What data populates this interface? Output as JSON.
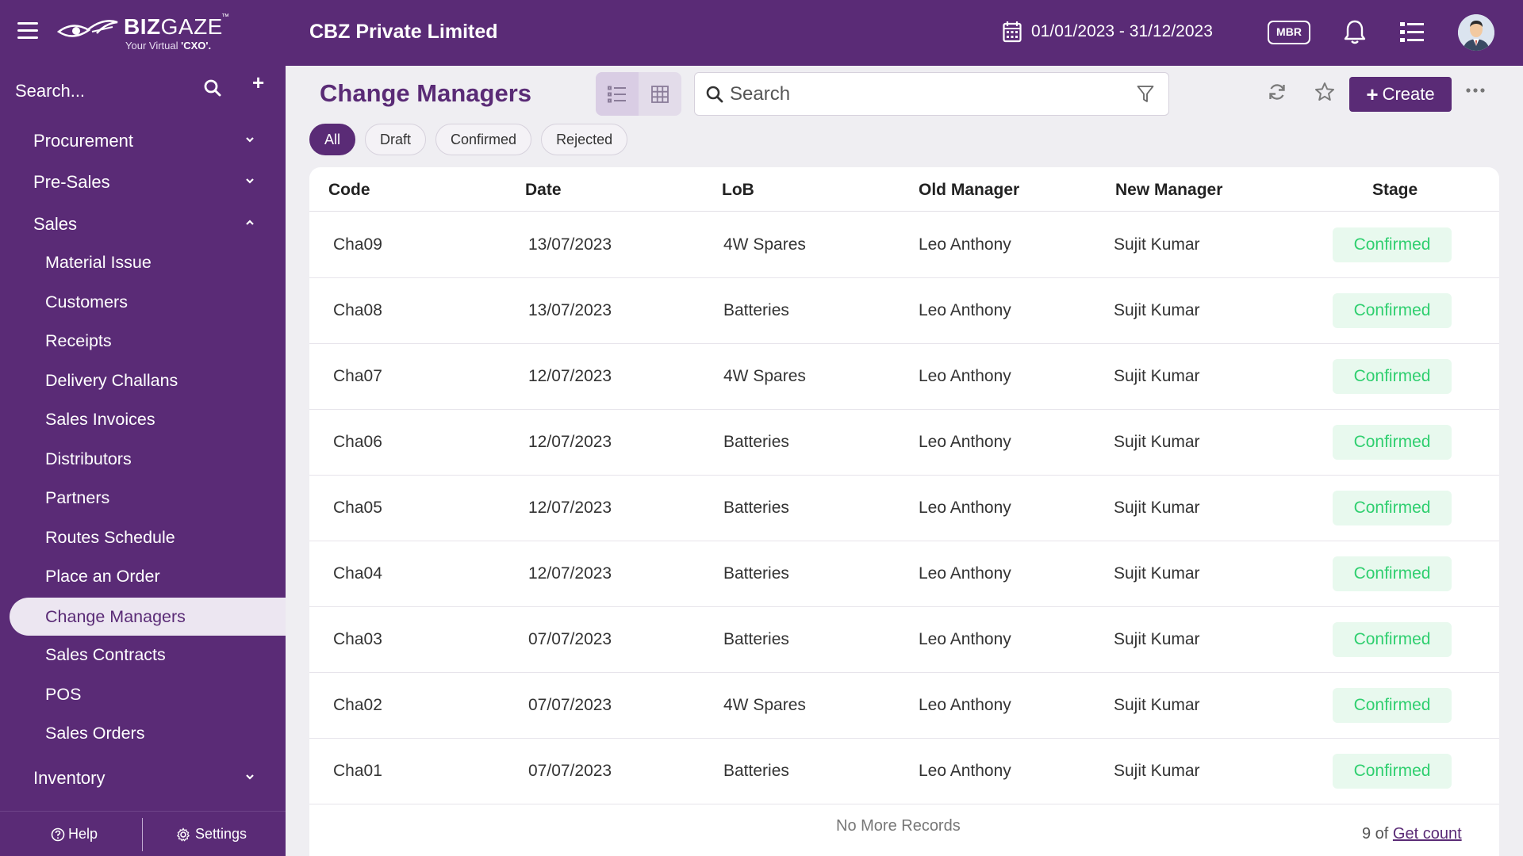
{
  "app": {
    "logo_main": "BIZ",
    "logo_light": "GAZE",
    "logo_tm": "™",
    "logo_tagline_prefix": "Your Virtual ",
    "logo_tagline_bold": "'CXO'.",
    "company": "CBZ Private Limited",
    "date_range": "01/01/2023 - 31/12/2023",
    "mbr_label": "MBR",
    "brand_color": "#5a2b76"
  },
  "sidebar": {
    "search_placeholder": "Search...",
    "add_label": "+",
    "groups": [
      {
        "label": "Procurement",
        "expanded": false
      },
      {
        "label": "Pre-Sales",
        "expanded": false
      },
      {
        "label": "Sales",
        "expanded": true
      },
      {
        "label": "Inventory",
        "expanded": false
      }
    ],
    "sales_items": [
      "Material Issue",
      "Customers",
      "Receipts",
      "Delivery Challans",
      "Sales Invoices",
      "Distributors",
      "Partners",
      "Routes Schedule",
      "Place an Order",
      "Change Managers",
      "Sales Contracts",
      "POS",
      "Sales Orders"
    ],
    "active_item": "Change Managers",
    "footer": {
      "help": "Help",
      "settings": "Settings"
    }
  },
  "main": {
    "title": "Change Managers",
    "search_placeholder": "Search",
    "create_label": "Create",
    "filters": [
      {
        "label": "All",
        "active": true
      },
      {
        "label": "Draft",
        "active": false
      },
      {
        "label": "Confirmed",
        "active": false
      },
      {
        "label": "Rejected",
        "active": false
      }
    ],
    "table": {
      "columns": [
        "Code",
        "Date",
        "LoB",
        "Old Manager",
        "New Manager",
        "Stage"
      ],
      "rows": [
        {
          "code": "Cha09",
          "date": "13/07/2023",
          "lob": "4W Spares",
          "old_manager": "Leo Anthony",
          "new_manager": "Sujit Kumar",
          "stage": "Confirmed"
        },
        {
          "code": "Cha08",
          "date": "13/07/2023",
          "lob": "Batteries",
          "old_manager": "Leo Anthony",
          "new_manager": "Sujit Kumar",
          "stage": "Confirmed"
        },
        {
          "code": "Cha07",
          "date": "12/07/2023",
          "lob": "4W Spares",
          "old_manager": "Leo Anthony",
          "new_manager": "Sujit Kumar",
          "stage": "Confirmed"
        },
        {
          "code": "Cha06",
          "date": "12/07/2023",
          "lob": "Batteries",
          "old_manager": "Leo Anthony",
          "new_manager": "Sujit Kumar",
          "stage": "Confirmed"
        },
        {
          "code": "Cha05",
          "date": "12/07/2023",
          "lob": "Batteries",
          "old_manager": "Leo Anthony",
          "new_manager": "Sujit Kumar",
          "stage": "Confirmed"
        },
        {
          "code": "Cha04",
          "date": "12/07/2023",
          "lob": "Batteries",
          "old_manager": "Leo Anthony",
          "new_manager": "Sujit Kumar",
          "stage": "Confirmed"
        },
        {
          "code": "Cha03",
          "date": "07/07/2023",
          "lob": "Batteries",
          "old_manager": "Leo Anthony",
          "new_manager": "Sujit Kumar",
          "stage": "Confirmed"
        },
        {
          "code": "Cha02",
          "date": "07/07/2023",
          "lob": "4W Spares",
          "old_manager": "Leo Anthony",
          "new_manager": "Sujit Kumar",
          "stage": "Confirmed"
        },
        {
          "code": "Cha01",
          "date": "07/07/2023",
          "lob": "Batteries",
          "old_manager": "Leo Anthony",
          "new_manager": "Sujit Kumar",
          "stage": "Confirmed"
        }
      ],
      "footer_text": "No More Records",
      "count_prefix": "9 of ",
      "count_link": "Get count"
    },
    "stage_color": "#2fcf6f"
  },
  "icons": {
    "menu": "hamburger-icon",
    "calendar": "calendar-icon",
    "notifications": "bell-icon",
    "tasks": "list-icon",
    "search": "search-icon",
    "filter": "filter-icon",
    "refresh": "refresh-icon",
    "favorite": "star-icon",
    "more": "more-icon"
  }
}
